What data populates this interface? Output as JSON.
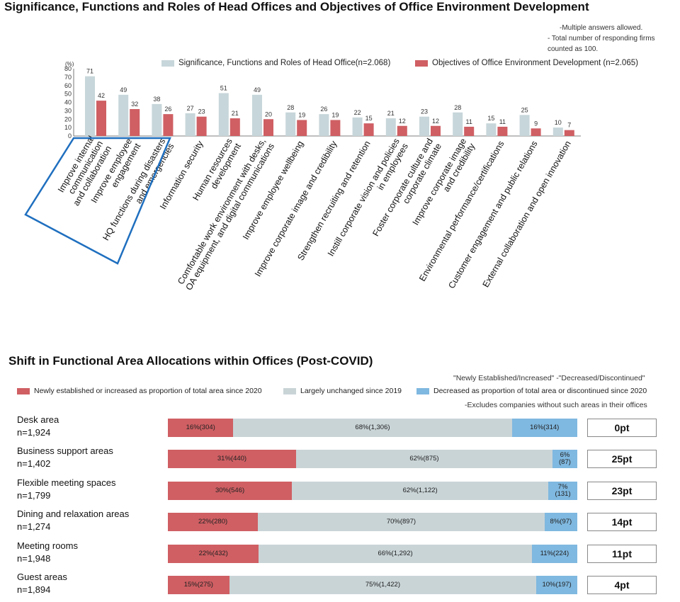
{
  "colors": {
    "blue_series": "#c7d6da",
    "red_series": "#cf5f63",
    "increased": "#cf5f63",
    "unchanged": "#c9d4d7",
    "decreased": "#7fb8e0",
    "highlight": "#1f6fbf"
  },
  "chart1": {
    "title": "Significance, Functions and Roles of Head Offices and Objectives of Office Environment Development",
    "notes": [
      "-Multiple answers allowed.",
      "- Total number of responding firms",
      "counted as 100."
    ],
    "unit_label": "(%)"
  },
  "chart2": {
    "title": "Shift in Functional Area Allocations within Offices (Post-COVID)",
    "note_top": "\"Newly Established/Increased\" -\"Decreased/Discontinued\"",
    "note_bottom": "-Excludes companies without such areas in their offices"
  },
  "chart_data": [
    {
      "type": "bar",
      "title": "Significance, Functions and Roles of Head Offices and Objectives of Office Environment Development",
      "ylabel": "(%)",
      "ylim": [
        0,
        80
      ],
      "yticks": [
        0,
        10,
        20,
        30,
        40,
        50,
        60,
        70,
        80
      ],
      "grid": false,
      "legend": "top-right",
      "categories": [
        "Improve internal communication and collaboration",
        "Improve employee engagement",
        "HQ functions during disasters and emergencies",
        "Information security",
        "Human resources development",
        "Comfortable work environment with desks, OA equipment, and digital communications",
        "Improve employee wellbeing",
        "Improve corporate image and credibility",
        "Strengthen recruiting and retention",
        "Instill corporate vision and policies in employees",
        "Foster corporate culture and corporate climate",
        "Improve corporate image and credibility",
        "Environmental performance/certifications",
        "Customer engagement and public relations",
        "External collaboration and open innovation"
      ],
      "category_lines": [
        [
          "Improve internal",
          "communication",
          "and collaboration"
        ],
        [
          "Improve employee",
          "engagement"
        ],
        [
          "HQ functions during disasters",
          "and emergencies"
        ],
        [
          "Information security"
        ],
        [
          "Human resources",
          "development"
        ],
        [
          "Comfortable work environment with desks,",
          "OA equipment, and digital communications"
        ],
        [
          "Improve employee wellbeing"
        ],
        [
          "Improve corporate image and credibility"
        ],
        [
          "Strengthen recruiting and retention"
        ],
        [
          "Instill corporate vision and policies",
          "in employees"
        ],
        [
          "Foster corporate culture and",
          "corporate climate"
        ],
        [
          "Improve corporate image",
          "and credibility"
        ],
        [
          "Environmental performance/certifications"
        ],
        [
          "Customer engagement and public relations"
        ],
        [
          "External collaboration and open innovation"
        ]
      ],
      "series": [
        {
          "name": "Significance, Functions and Roles of Head Office(n=2.068)",
          "values": [
            71,
            49,
            38,
            27,
            51,
            49,
            28,
            26,
            22,
            21,
            23,
            28,
            15,
            25,
            10
          ]
        },
        {
          "name": "Objectives of Office Environment Development (n=2.065)",
          "values": [
            42,
            32,
            26,
            23,
            21,
            20,
            19,
            19,
            15,
            12,
            12,
            11,
            11,
            9,
            7
          ]
        }
      ]
    },
    {
      "type": "bar",
      "orientation": "horizontal-stacked-100",
      "title": "Shift in Functional Area Allocations within Offices (Post-COVID)",
      "legend": "top",
      "series_names": [
        "Newly established or increased as proportion of total area since 2020",
        "Largely unchanged since 2019",
        "Decreased as proportion of total area or discontinued since 2020"
      ],
      "rows": [
        {
          "label": "Desk area",
          "n": "n=1,924",
          "values": [
            16,
            68,
            16
          ],
          "labels": [
            "16%(304)",
            "68%(1,306)",
            "16%(314)"
          ],
          "diff": "0pt"
        },
        {
          "label": "Business support areas",
          "n": "n=1,402",
          "values": [
            31,
            62,
            6
          ],
          "labels": [
            "31%(440)",
            "62%(875)",
            "6%\n(87)"
          ],
          "diff": "25pt"
        },
        {
          "label": "Flexible meeting spaces",
          "n": "n=1,799",
          "values": [
            30,
            62,
            7
          ],
          "labels": [
            "30%(546)",
            "62%(1,122)",
            "7%\n(131)"
          ],
          "diff": "23pt"
        },
        {
          "label": "Dining and relaxation areas",
          "n": "n=1,274",
          "values": [
            22,
            70,
            8
          ],
          "labels": [
            "22%(280)",
            "70%(897)",
            "8%(97)"
          ],
          "diff": "14pt"
        },
        {
          "label": "Meeting rooms",
          "n": "n=1,948",
          "values": [
            22,
            66,
            11
          ],
          "labels": [
            "22%(432)",
            "66%(1,292)",
            "11%(224)"
          ],
          "diff": "11pt"
        },
        {
          "label": "Guest areas",
          "n": "n=1,894",
          "values": [
            15,
            75,
            10
          ],
          "labels": [
            "15%(275)",
            "75%(1,422)",
            "10%(197)"
          ],
          "diff": "4pt"
        }
      ]
    }
  ]
}
